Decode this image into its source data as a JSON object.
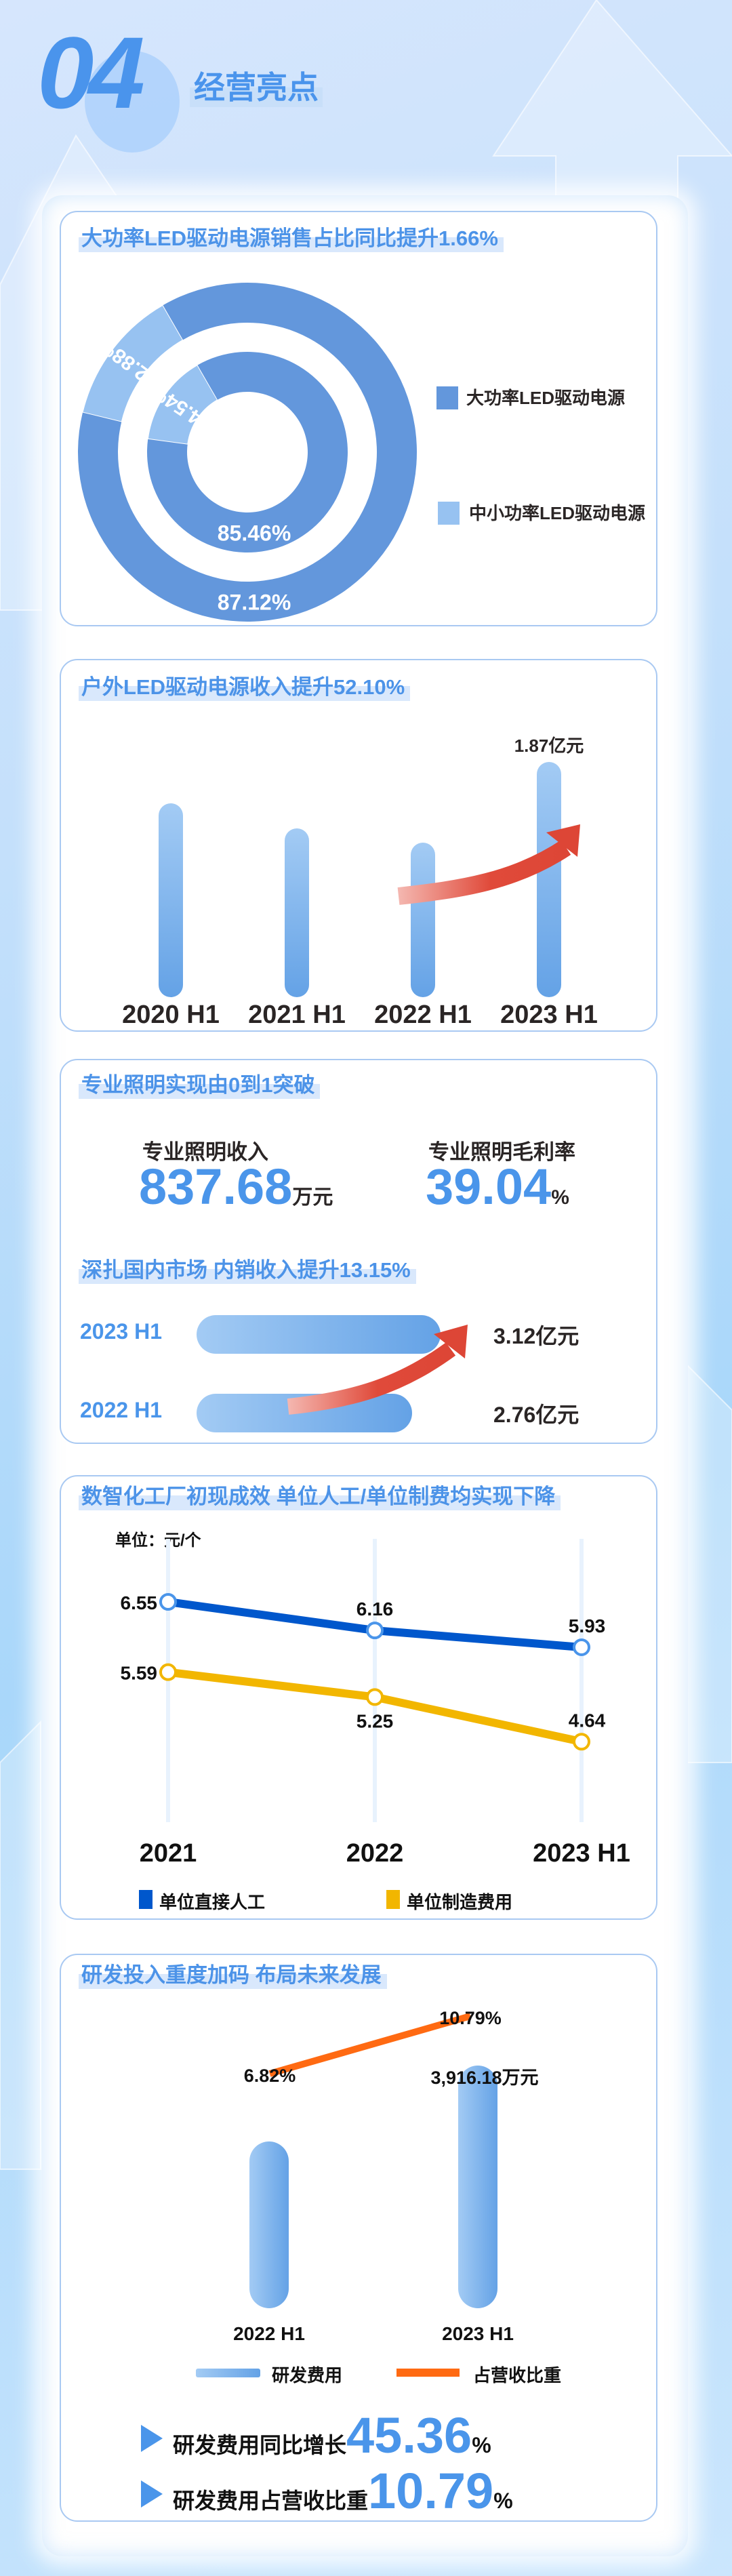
{
  "header": {
    "number": "04",
    "title": "经营亮点"
  },
  "colors": {
    "accent": "#4a95ea",
    "donut_large": "#6397dc",
    "donut_small": "#97c2f1",
    "line_blue": "#0057cc",
    "line_yellow": "#f2b600",
    "line_orange": "#ff6a12",
    "arrow_red": "#e04a3a"
  },
  "sec1": {
    "title": "大功率LED驱动电源销售占比同比提升1.66%",
    "chart_data": {
      "type": "pie",
      "legend": [
        "大功率LED驱动电源",
        "中小功率LED驱动电源"
      ],
      "legend_placement": "right",
      "rings": [
        {
          "ring": "outer",
          "values": [
            87.12,
            12.88
          ],
          "labels": [
            "87.12%",
            "12.88%"
          ]
        },
        {
          "ring": "inner",
          "values": [
            85.46,
            14.54
          ],
          "labels": [
            "85.46%",
            "14.54%"
          ]
        }
      ]
    }
  },
  "sec2": {
    "title": "户外LED驱动电源收入提升52.10%",
    "chart_data": {
      "type": "bar",
      "categories": [
        "2020 H1",
        "2021 H1",
        "2022 H1",
        "2023 H1"
      ],
      "values": [
        1.54,
        1.34,
        1.23,
        1.87
      ],
      "data_labels": [
        "",
        "",
        "",
        "1.87亿元"
      ],
      "unit": "亿元"
    }
  },
  "sec3": {
    "title": "专业照明实现由0到1突破",
    "stats": [
      {
        "label": "专业照明收入",
        "value": "837.68",
        "unit": "万元"
      },
      {
        "label": "专业照明毛利率",
        "value": "39.04",
        "unit": "%"
      }
    ],
    "subtitle": "深扎国内市场 内销收入提升13.15%",
    "chart_data": {
      "type": "bar",
      "orientation": "horizontal",
      "categories": [
        "2023 H1",
        "2022 H1"
      ],
      "values": [
        3.12,
        2.76
      ],
      "data_labels": [
        "3.12亿元",
        "2.76亿元"
      ]
    }
  },
  "sec4": {
    "title": "数智化工厂初现成效 单位人工/单位制费均实现下降",
    "chart_data": {
      "type": "line",
      "unit_label": "单位：元/个",
      "categories": [
        "2021",
        "2022",
        "2023 H1"
      ],
      "ylim": [
        4,
        7
      ],
      "series": [
        {
          "name": "单位直接人工",
          "values": [
            6.55,
            6.16,
            5.93
          ],
          "labels": [
            "6.55",
            "6.16",
            "5.93"
          ]
        },
        {
          "name": "单位制造费用",
          "values": [
            5.59,
            5.25,
            4.64
          ],
          "labels": [
            "5.59",
            "5.25",
            "4.64"
          ]
        }
      ]
    }
  },
  "sec5": {
    "title": "研发投入重度加码 布局未来发展",
    "chart_data": {
      "type": "bar",
      "categories": [
        "2022 H1",
        "2023 H1"
      ],
      "series": [
        {
          "name": "研发费用",
          "values": [
            2694.1,
            3916.18
          ],
          "labels": [
            "",
            "3,916.18万元"
          ]
        },
        {
          "name": "占营收比重",
          "type": "line",
          "values": [
            6.82,
            10.79
          ],
          "labels": [
            "6.82%",
            "10.79%"
          ]
        }
      ]
    },
    "stats": [
      {
        "label": "研发费用同比增长",
        "value": "45.36",
        "unit": "%"
      },
      {
        "label": "研发费用占营收比重",
        "value": "10.79",
        "unit": "%"
      }
    ]
  }
}
